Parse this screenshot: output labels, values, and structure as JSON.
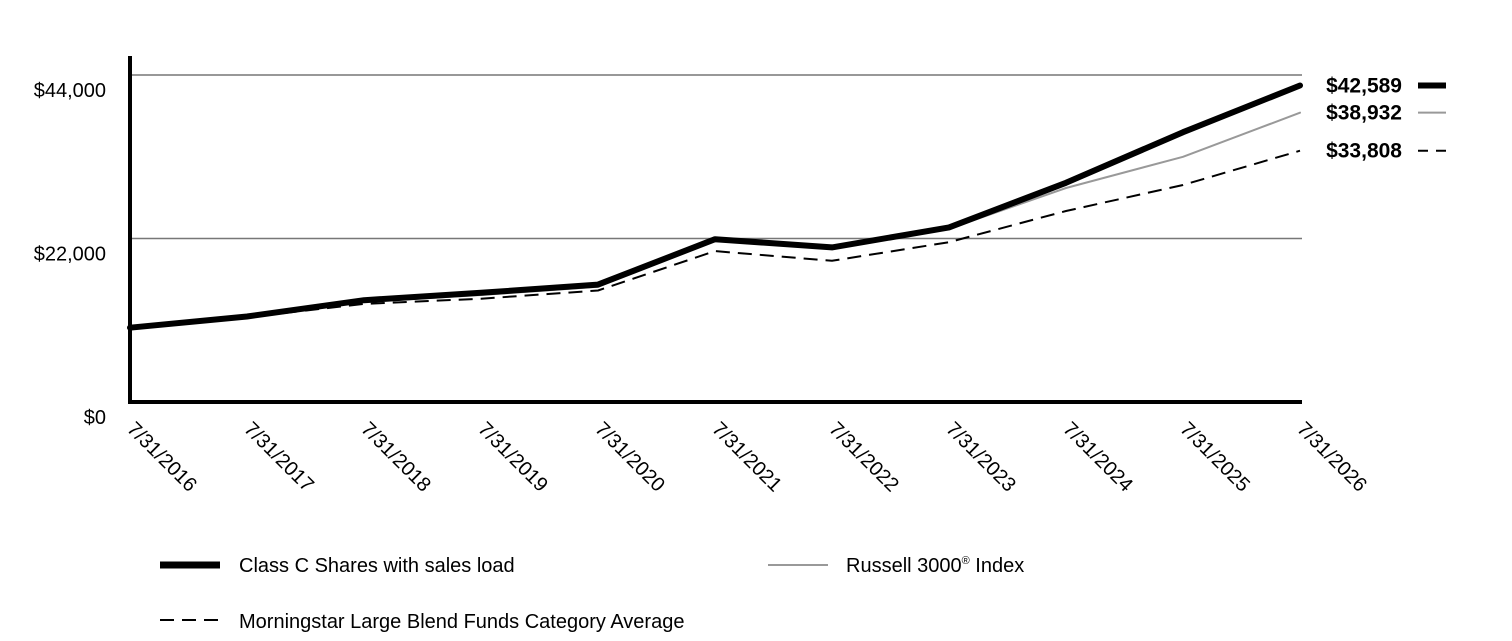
{
  "chart_data": {
    "type": "line",
    "title": "",
    "xlabel": "",
    "ylabel": "",
    "x": [
      "7/31/2016",
      "7/31/2017",
      "7/31/2018",
      "7/31/2019",
      "7/31/2020",
      "7/31/2021",
      "7/31/2022",
      "7/31/2023",
      "7/31/2024",
      "7/31/2025",
      "7/31/2026"
    ],
    "ylim": [
      0,
      44000
    ],
    "yticks": [
      0,
      22000,
      44000
    ],
    "ytick_labels": [
      "$0",
      "$22,000",
      "$44,000"
    ],
    "grid": "horizontal",
    "legend_position": "bottom",
    "series": [
      {
        "name": "Class C Shares with sales load",
        "style": "thick-solid",
        "color": "#000000",
        "end_label": "$42,589",
        "values": [
          10000,
          11500,
          13700,
          14700,
          15800,
          21900,
          20800,
          23500,
          29500,
          36300,
          42589
        ]
      },
      {
        "name": "Russell 3000® Index",
        "style": "thin-solid",
        "color": "#999999",
        "end_label": "$38,932",
        "values": [
          10000,
          11500,
          13500,
          14400,
          15500,
          21800,
          20600,
          23300,
          28800,
          33000,
          38932
        ]
      },
      {
        "name": "Morningstar Large Blend Funds Category Average",
        "style": "dashed",
        "color": "#000000",
        "end_label": "$33,808",
        "values": [
          10000,
          11400,
          13200,
          13900,
          15000,
          20300,
          19000,
          21500,
          25700,
          29200,
          33808
        ]
      }
    ]
  },
  "legend": {
    "items": [
      {
        "label": "Class C Shares with sales load"
      },
      {
        "label": "Russell 3000",
        "superscript": "®",
        "suffix": " Index"
      },
      {
        "label": "Morningstar Large Blend Funds Category Average"
      }
    ]
  }
}
